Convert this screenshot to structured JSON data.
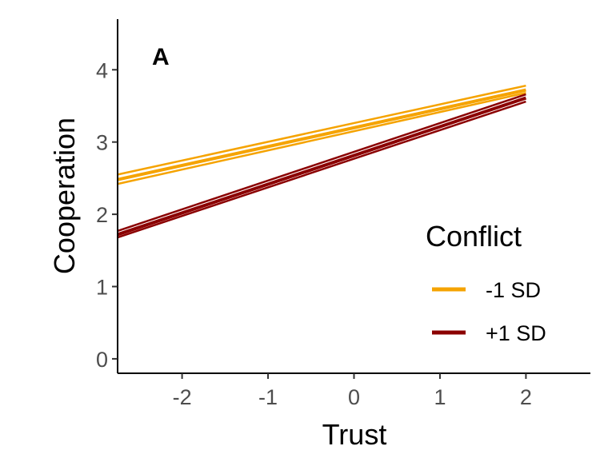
{
  "chart_data": {
    "type": "line",
    "panel_label": "A",
    "xlabel": "Trust",
    "ylabel": "Cooperation",
    "xlim": [
      -2.75,
      2.75
    ],
    "ylim": [
      -0.2,
      4.7
    ],
    "x_ticks": [
      -2,
      -1,
      0,
      1,
      2
    ],
    "y_ticks": [
      0,
      1,
      2,
      3,
      4
    ],
    "grid": false,
    "legend": {
      "title": "Conflict",
      "placement": "bottom-right"
    },
    "series": [
      {
        "name": "-1 SD",
        "color": "#F5A300",
        "x": [
          -2.75,
          2.0
        ],
        "y": [
          2.48,
          3.72
        ],
        "band": {
          "lower": [
            2.42,
            3.68
          ],
          "upper": [
            2.55,
            3.78
          ]
        }
      },
      {
        "name": "+1 SD",
        "color": "#8B0000",
        "x": [
          -2.75,
          2.0
        ],
        "y": [
          1.72,
          3.61
        ],
        "band": {
          "lower": [
            1.68,
            3.56
          ],
          "upper": [
            1.77,
            3.66
          ]
        }
      }
    ]
  }
}
